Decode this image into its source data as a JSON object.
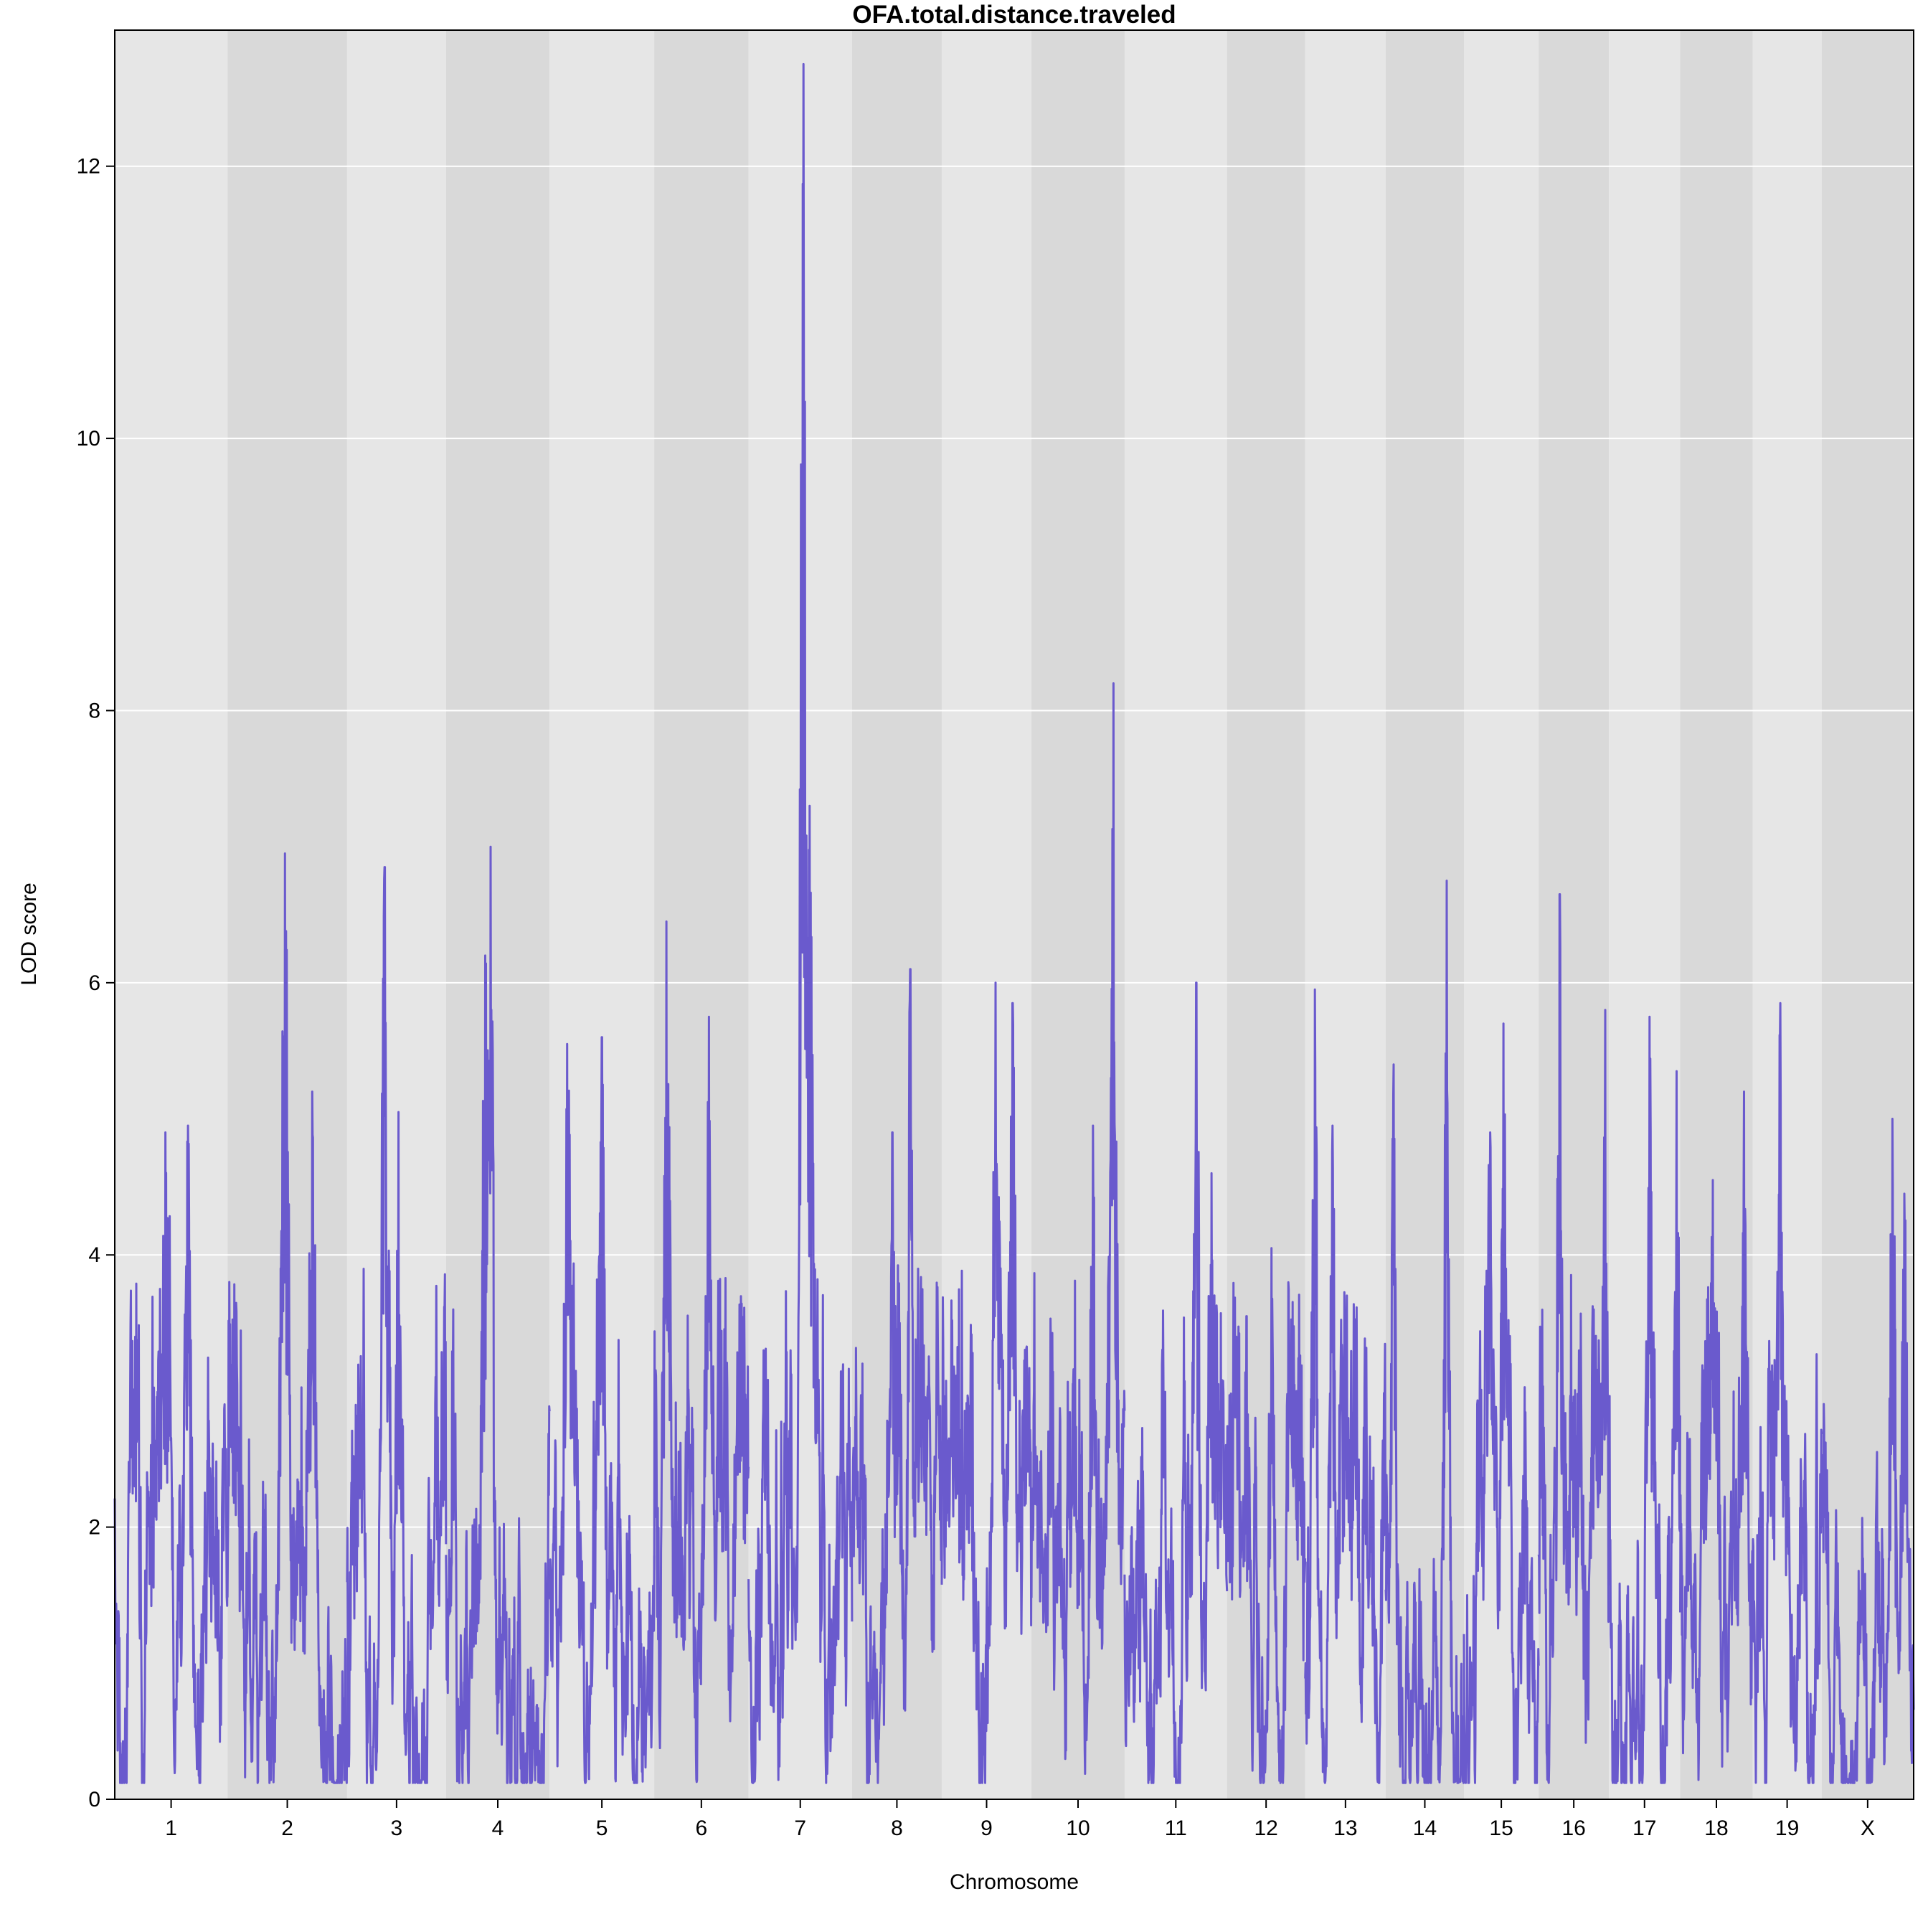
{
  "chart_data": {
    "type": "line",
    "title": "OFA.total.distance.traveled",
    "xlabel": "Chromosome",
    "ylabel": "LOD score",
    "ylim": [
      0,
      13
    ],
    "yticks": [
      0,
      2,
      4,
      6,
      8,
      10,
      12
    ],
    "grid": true,
    "colors": {
      "line": "#6A5ACD",
      "band_light": "#E6E6E6",
      "band_dark": "#D9D9D9",
      "grid": "#FFFFFF",
      "frame": "#000000"
    },
    "categories": [
      "1",
      "2",
      "3",
      "4",
      "5",
      "6",
      "7",
      "8",
      "9",
      "10",
      "11",
      "12",
      "13",
      "14",
      "15",
      "16",
      "17",
      "18",
      "19",
      "X"
    ],
    "chromosome_lengths_cM": [
      98,
      104,
      86,
      90,
      91,
      82,
      90,
      78,
      78,
      81,
      89,
      68,
      70,
      68,
      65,
      61,
      62,
      63,
      60,
      80
    ],
    "series": [
      {
        "peaks": [
          {
            "chr": "1",
            "pos": 0.45,
            "lod": 4.9
          },
          {
            "chr": "1",
            "pos": 0.65,
            "lod": 4.95
          },
          {
            "chr": "2",
            "pos": 0.48,
            "lod": 6.95
          },
          {
            "chr": "2",
            "pos": 0.71,
            "lod": 5.2
          },
          {
            "chr": "3",
            "pos": 0.38,
            "lod": 6.85
          },
          {
            "chr": "3",
            "pos": 0.52,
            "lod": 5.05
          },
          {
            "chr": "4",
            "pos": 0.43,
            "lod": 7.0
          },
          {
            "chr": "4",
            "pos": 0.38,
            "lod": 6.2
          },
          {
            "chr": "5",
            "pos": 0.17,
            "lod": 5.55
          },
          {
            "chr": "5",
            "pos": 0.5,
            "lod": 5.6
          },
          {
            "chr": "6",
            "pos": 0.13,
            "lod": 6.45
          },
          {
            "chr": "6",
            "pos": 0.58,
            "lod": 5.75
          },
          {
            "chr": "7",
            "pos": 0.53,
            "lod": 12.75
          },
          {
            "chr": "7",
            "pos": 0.59,
            "lod": 7.3
          },
          {
            "chr": "8",
            "pos": 0.65,
            "lod": 6.1
          },
          {
            "chr": "8",
            "pos": 0.45,
            "lod": 4.9
          },
          {
            "chr": "9",
            "pos": 0.6,
            "lod": 6.0
          },
          {
            "chr": "9",
            "pos": 0.79,
            "lod": 5.85
          },
          {
            "chr": "10",
            "pos": 0.88,
            "lod": 8.2
          },
          {
            "chr": "10",
            "pos": 0.66,
            "lod": 4.95
          },
          {
            "chr": "11",
            "pos": 0.7,
            "lod": 6.0
          },
          {
            "chr": "11",
            "pos": 0.85,
            "lod": 4.6
          },
          {
            "chr": "12",
            "pos": 0.57,
            "lod": 4.05
          },
          {
            "chr": "12",
            "pos": 0.25,
            "lod": 3.55
          },
          {
            "chr": "13",
            "pos": 0.12,
            "lod": 5.95
          },
          {
            "chr": "13",
            "pos": 0.34,
            "lod": 4.95
          },
          {
            "chr": "14",
            "pos": 0.78,
            "lod": 6.75
          },
          {
            "chr": "14",
            "pos": 0.1,
            "lod": 5.4
          },
          {
            "chr": "15",
            "pos": 0.53,
            "lod": 5.7
          },
          {
            "chr": "15",
            "pos": 0.35,
            "lod": 4.9
          },
          {
            "chr": "16",
            "pos": 0.3,
            "lod": 6.65
          },
          {
            "chr": "16",
            "pos": 0.95,
            "lod": 5.8
          },
          {
            "chr": "17",
            "pos": 0.57,
            "lod": 5.75
          },
          {
            "chr": "17",
            "pos": 0.95,
            "lod": 5.35
          },
          {
            "chr": "18",
            "pos": 0.88,
            "lod": 5.2
          },
          {
            "chr": "18",
            "pos": 0.45,
            "lod": 4.55
          },
          {
            "chr": "19",
            "pos": 0.4,
            "lod": 5.85
          },
          {
            "chr": "19",
            "pos": 0.7,
            "lod": 2.5
          },
          {
            "chr": "X",
            "pos": 0.77,
            "lod": 5.0
          },
          {
            "chr": "X",
            "pos": 0.9,
            "lod": 4.45
          }
        ]
      }
    ]
  }
}
